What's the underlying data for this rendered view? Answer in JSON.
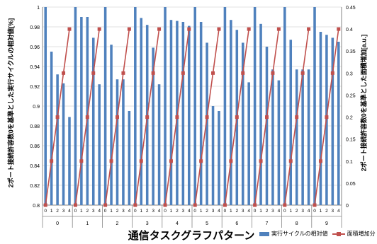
{
  "chart_data": {
    "type": "bar",
    "ylabel": "2ポート接続許容数0を基準とした実行サイクルの相対値[%]",
    "y2label": "2ポート接続許容数0を基準とした面積増加[a.u.]",
    "xlabel": "通信タスクグラフパターン",
    "ylim": [
      0.8,
      1.0
    ],
    "y2lim": [
      0,
      0.45
    ],
    "yticks": [
      "0.8",
      "0.82",
      "0.84",
      "0.86",
      "0.88",
      "0.9",
      "0.92",
      "0.94",
      "0.96",
      "0.98",
      "1"
    ],
    "y2ticks": [
      "0",
      "0.05",
      "0.1",
      "0.15",
      "0.2",
      "0.25",
      "0.3",
      "0.35",
      "0.4",
      "0.45"
    ],
    "groups": [
      "0",
      "1",
      "2",
      "3",
      "4",
      "5",
      "6",
      "7",
      "8",
      "9"
    ],
    "sub_categories": [
      "0",
      "1",
      "2",
      "3",
      "4"
    ],
    "legend": [
      "実行サイクルの相対値",
      "面積増加分"
    ],
    "series": [
      {
        "name": "実行サイクルの相対値",
        "kind": "bar",
        "color": "#4f81bd",
        "values": [
          [
            1.0,
            0.955,
            0.932,
            0.923,
            0.889
          ],
          [
            1.0,
            0.99,
            0.99,
            0.969,
            0.922
          ],
          [
            1.0,
            0.962,
            0.927,
            0.927,
            0.895
          ],
          [
            1.0,
            0.989,
            0.982,
            0.959,
            0.922
          ],
          [
            1.0,
            0.987,
            0.986,
            0.985,
            0.981
          ],
          [
            1.0,
            0.985,
            0.964,
            0.9,
            0.895
          ],
          [
            1.0,
            0.987,
            0.977,
            0.964,
            0.924
          ],
          [
            1.0,
            0.983,
            0.96,
            0.937,
            0.926
          ],
          [
            1.0,
            0.967,
            0.937,
            0.937,
            0.937
          ],
          [
            1.0,
            0.975,
            0.972,
            0.969,
            0.965
          ]
        ]
      },
      {
        "name": "面積増加分",
        "kind": "line",
        "axis": "right",
        "color": "#c0504d",
        "values": [
          0,
          0.1,
          0.2,
          0.3,
          0.4
        ]
      }
    ]
  }
}
